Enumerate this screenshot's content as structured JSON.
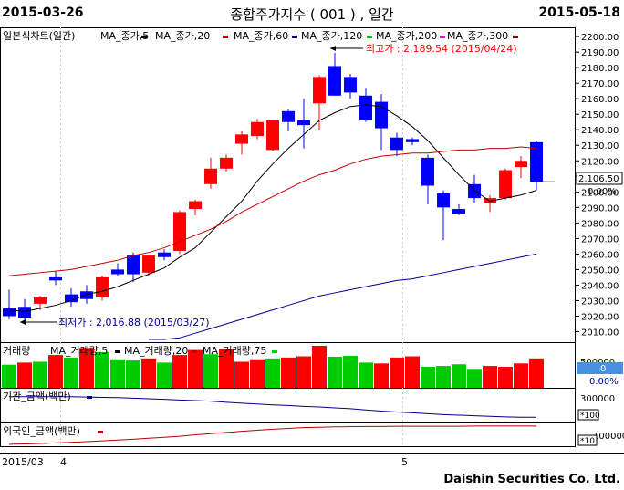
{
  "header": {
    "start_date": "2015-03-26",
    "title": "종합주가지수 ( 001 ) , 일간",
    "end_date": "2015-05-18"
  },
  "footer": {
    "brand": "Daishin Securities Co. Ltd."
  },
  "colors": {
    "up": "#ff0000",
    "down": "#0000ff",
    "ma5": "#000000",
    "ma20": "#c00000",
    "ma60": "#00008b",
    "vol_up": "#ff0000",
    "vol_down": "#00cc00",
    "inst": "#00008b",
    "foreign": "#c00000",
    "price_box": "#4a90e2"
  },
  "price_panel": {
    "legend": [
      "일본식차트(일간)",
      "MA_종가,5",
      "MA_종가,20",
      "MA_종가,60",
      "MA_종가,120",
      "MA_종가,200",
      "MA_종가,300"
    ],
    "high_annotation": "최고가 : 2,189.54 (2015/04/24)",
    "low_annotation": "최저가 : 2,016.88 (2015/03/27)",
    "current_price": "2,106.50",
    "current_change": "0.00%",
    "y_ticks": [
      "2200.00",
      "2190.00",
      "2180.00",
      "2170.00",
      "2160.00",
      "2150.00",
      "2140.00",
      "2130.00",
      "2120.00",
      "2110.00",
      "2100.00",
      "2090.00",
      "2080.00",
      "2070.00",
      "2060.00",
      "2050.00",
      "2040.00",
      "2030.00",
      "2020.00",
      "2010.00"
    ]
  },
  "volume_panel": {
    "legend": [
      "거래량",
      "MA_거래량,5",
      "MA_거래량,20",
      "MA_거래량,75"
    ],
    "value": "0",
    "change": "0.00%",
    "tick": "500000"
  },
  "inst_panel": {
    "legend": "기관_금액(백만)",
    "tick": "300000",
    "unit": "*100"
  },
  "foreign_panel": {
    "legend": "외국인_금액(백만)",
    "tick": "100000",
    "unit": "*10"
  },
  "x_axis": [
    "2015/03",
    "4",
    "5"
  ],
  "chart_data": {
    "type": "candlestick",
    "ylim": [
      2005,
      2203
    ],
    "candles": [
      {
        "o": 2025,
        "h": 2037,
        "l": 2018,
        "c": 2020
      },
      {
        "o": 2026,
        "h": 2031,
        "l": 2017,
        "c": 2019
      },
      {
        "o": 2028,
        "h": 2033,
        "l": 2024,
        "c": 2032
      },
      {
        "o": 2045,
        "h": 2049,
        "l": 2040,
        "c": 2043
      },
      {
        "o": 2034,
        "h": 2038,
        "l": 2026,
        "c": 2029
      },
      {
        "o": 2036,
        "h": 2040,
        "l": 2028,
        "c": 2031
      },
      {
        "o": 2032,
        "h": 2046,
        "l": 2030,
        "c": 2045
      },
      {
        "o": 2050,
        "h": 2054,
        "l": 2046,
        "c": 2047
      },
      {
        "o": 2059,
        "h": 2061,
        "l": 2042,
        "c": 2047
      },
      {
        "o": 2048,
        "h": 2059,
        "l": 2046,
        "c": 2059
      },
      {
        "o": 2061,
        "h": 2063,
        "l": 2056,
        "c": 2058
      },
      {
        "o": 2062,
        "h": 2088,
        "l": 2060,
        "c": 2087
      },
      {
        "o": 2089,
        "h": 2095,
        "l": 2085,
        "c": 2094
      },
      {
        "o": 2105,
        "h": 2122,
        "l": 2102,
        "c": 2115
      },
      {
        "o": 2115,
        "h": 2124,
        "l": 2113,
        "c": 2122
      },
      {
        "o": 2131,
        "h": 2139,
        "l": 2124,
        "c": 2137
      },
      {
        "o": 2136,
        "h": 2147,
        "l": 2134,
        "c": 2145
      },
      {
        "o": 2127,
        "h": 2146,
        "l": 2126,
        "c": 2146
      },
      {
        "o": 2152,
        "h": 2153,
        "l": 2139,
        "c": 2145
      },
      {
        "o": 2146,
        "h": 2160,
        "l": 2128,
        "c": 2143
      },
      {
        "o": 2157,
        "h": 2175,
        "l": 2140,
        "c": 2174
      },
      {
        "o": 2181,
        "h": 2189.54,
        "l": 2162,
        "c": 2162
      },
      {
        "o": 2174,
        "h": 2176,
        "l": 2160,
        "c": 2164
      },
      {
        "o": 2162,
        "h": 2167,
        "l": 2145,
        "c": 2146
      },
      {
        "o": 2158,
        "h": 2163,
        "l": 2127,
        "c": 2141
      },
      {
        "o": 2135,
        "h": 2138,
        "l": 2123,
        "c": 2127
      },
      {
        "o": 2134,
        "h": 2135,
        "l": 2130,
        "c": 2132
      },
      {
        "o": 2122,
        "h": 2124,
        "l": 2092,
        "c": 2104
      },
      {
        "o": 2099,
        "h": 2101,
        "l": 2069,
        "c": 2090
      },
      {
        "o": 2089,
        "h": 2092,
        "l": 2085,
        "c": 2086
      },
      {
        "o": 2105,
        "h": 2111,
        "l": 2093,
        "c": 2096
      },
      {
        "o": 2093,
        "h": 2098,
        "l": 2087,
        "c": 2096
      },
      {
        "o": 2096,
        "h": 2115,
        "l": 2095,
        "c": 2114
      },
      {
        "o": 2116,
        "h": 2123,
        "l": 2109,
        "c": 2120
      },
      {
        "o": 2132,
        "h": 2133,
        "l": 2101,
        "c": 2106.5
      }
    ],
    "ma5": [
      2024,
      2023,
      2025,
      2027,
      2030,
      2034,
      2036,
      2039,
      2043,
      2047,
      2051,
      2058,
      2064,
      2074,
      2084,
      2094,
      2107,
      2118,
      2128,
      2137,
      2146,
      2151,
      2155,
      2156,
      2155,
      2149,
      2142,
      2133,
      2122,
      2111,
      2101,
      2094,
      2096,
      2098,
      2101
    ],
    "ma20": [
      2046,
      2047,
      2048,
      2049,
      2050,
      2052,
      2054,
      2056,
      2059,
      2061,
      2064,
      2068,
      2072,
      2076,
      2081,
      2087,
      2092,
      2097,
      2102,
      2107,
      2111,
      2114,
      2118,
      2121,
      2123,
      2124,
      2125,
      2125,
      2126,
      2127,
      2127,
      2128,
      2128,
      2129,
      2128
    ],
    "ma60": [
      2000,
      2003,
      2006,
      2009,
      2012,
      2015,
      2018,
      2021,
      2024,
      2027,
      2030,
      2033,
      2035,
      2037,
      2039,
      2041,
      2043,
      2044,
      2046,
      2048,
      2050,
      2052,
      2054,
      2056,
      2058,
      2060
    ],
    "volume": [
      {
        "v": 0.55,
        "up": false
      },
      {
        "v": 0.6,
        "up": true
      },
      {
        "v": 0.62,
        "up": false
      },
      {
        "v": 0.78,
        "up": true
      },
      {
        "v": 0.72,
        "up": false
      },
      {
        "v": 0.95,
        "up": true
      },
      {
        "v": 0.85,
        "up": false
      },
      {
        "v": 0.68,
        "up": false
      },
      {
        "v": 0.65,
        "up": false
      },
      {
        "v": 0.7,
        "up": true
      },
      {
        "v": 0.6,
        "up": false
      },
      {
        "v": 0.78,
        "up": true
      },
      {
        "v": 0.9,
        "up": true
      },
      {
        "v": 0.8,
        "up": false
      },
      {
        "v": 0.92,
        "up": true
      },
      {
        "v": 0.62,
        "up": true
      },
      {
        "v": 0.68,
        "up": true
      },
      {
        "v": 0.7,
        "up": false
      },
      {
        "v": 0.72,
        "up": true
      },
      {
        "v": 0.75,
        "up": true
      },
      {
        "v": 1.0,
        "up": true
      },
      {
        "v": 0.74,
        "up": false
      },
      {
        "v": 0.76,
        "up": false
      },
      {
        "v": 0.6,
        "up": false
      },
      {
        "v": 0.58,
        "up": true
      },
      {
        "v": 0.72,
        "up": true
      },
      {
        "v": 0.75,
        "up": true
      },
      {
        "v": 0.5,
        "up": false
      },
      {
        "v": 0.52,
        "up": false
      },
      {
        "v": 0.56,
        "up": false
      },
      {
        "v": 0.45,
        "up": false
      },
      {
        "v": 0.52,
        "up": true
      },
      {
        "v": 0.5,
        "up": true
      },
      {
        "v": 0.58,
        "up": true
      },
      {
        "v": 0.7,
        "up": true
      }
    ],
    "inst_line": [
      0.85,
      0.85,
      0.85,
      0.85,
      0.85,
      0.84,
      0.83,
      0.82,
      0.8,
      0.78,
      0.76,
      0.74,
      0.72,
      0.7,
      0.66,
      0.63,
      0.6,
      0.57,
      0.55,
      0.52,
      0.5,
      0.47,
      0.44,
      0.4,
      0.36,
      0.33,
      0.3,
      0.27,
      0.24,
      0.22,
      0.2,
      0.18,
      0.16,
      0.15,
      0.15
    ],
    "foreign_line": [
      0.05,
      0.07,
      0.09,
      0.12,
      0.15,
      0.18,
      0.22,
      0.26,
      0.3,
      0.35,
      0.4,
      0.45,
      0.52,
      0.58,
      0.64,
      0.7,
      0.75,
      0.8,
      0.84,
      0.88,
      0.9,
      0.92,
      0.93,
      0.94,
      0.94,
      0.95,
      0.95,
      0.95,
      0.95,
      0.95,
      0.96,
      0.96,
      0.96,
      0.96,
      0.96
    ]
  }
}
